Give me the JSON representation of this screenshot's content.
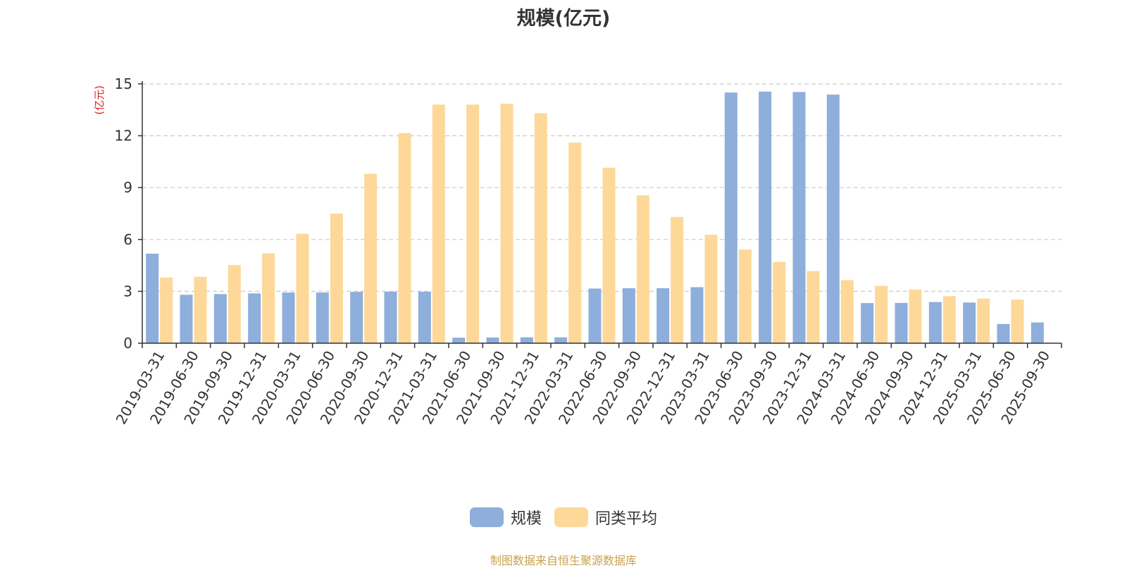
{
  "title": "规模(亿元)",
  "source": "制图数据来自恒生聚源数据库",
  "chart_data": {
    "type": "bar",
    "title": "规模(亿元)",
    "ylabel": "(亿元)",
    "xlabel": "",
    "ylim": [
      0,
      15
    ],
    "yticks": [
      0,
      3,
      6,
      9,
      12,
      15
    ],
    "grid": true,
    "legend_position": "bottom-center",
    "categories": [
      "2019-03-31",
      "2019-06-30",
      "2019-09-30",
      "2019-12-31",
      "2020-03-31",
      "2020-06-30",
      "2020-09-30",
      "2020-12-31",
      "2021-03-31",
      "2021-06-30",
      "2021-09-30",
      "2021-12-31",
      "2022-03-31",
      "2022-06-30",
      "2022-09-30",
      "2022-12-31",
      "2023-03-31",
      "2023-06-30",
      "2023-09-30",
      "2023-12-31",
      "2024-03-31",
      "2024-06-30",
      "2024-09-30",
      "2024-12-31",
      "2025-03-31",
      "2025-06-30",
      "2025-09-30"
    ],
    "series": [
      {
        "name": "规模",
        "color": "#8eaedb",
        "values": [
          5.18,
          2.8,
          2.84,
          2.88,
          2.93,
          2.93,
          2.97,
          2.98,
          2.98,
          0.32,
          0.33,
          0.34,
          0.34,
          3.16,
          3.18,
          3.18,
          3.24,
          14.5,
          14.55,
          14.53,
          14.38,
          2.32,
          2.33,
          2.38,
          2.35,
          1.11,
          1.2
        ]
      },
      {
        "name": "同类平均",
        "color": "#fdd898",
        "values": [
          3.8,
          3.84,
          4.52,
          5.2,
          6.33,
          7.5,
          9.8,
          12.15,
          13.8,
          13.8,
          13.85,
          13.3,
          11.6,
          10.15,
          8.55,
          7.3,
          6.27,
          5.42,
          4.7,
          4.17,
          3.65,
          3.32,
          3.1,
          2.72,
          2.58,
          2.52,
          null
        ]
      }
    ]
  }
}
